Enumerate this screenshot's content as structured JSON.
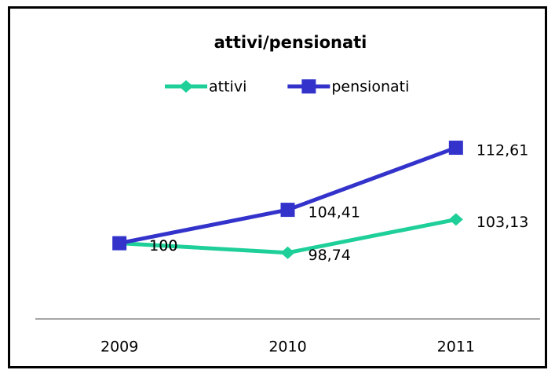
{
  "chart_data": {
    "type": "line",
    "title": "attivi/pensionati",
    "categories": [
      "2009",
      "2010",
      "2011"
    ],
    "series": [
      {
        "name": "attivi",
        "color": "#1fcf99",
        "marker": "diamond",
        "values": [
          100,
          98.74,
          103.13
        ],
        "value_labels": [
          "100",
          "98,74",
          "103,13"
        ]
      },
      {
        "name": "pensionati",
        "color": "#3333cc",
        "marker": "square",
        "values": [
          100,
          104.41,
          112.61
        ],
        "value_labels": [
          "100",
          "104,41",
          "112,61"
        ]
      }
    ],
    "ylim": [
      90,
      115
    ],
    "legend": "top"
  }
}
